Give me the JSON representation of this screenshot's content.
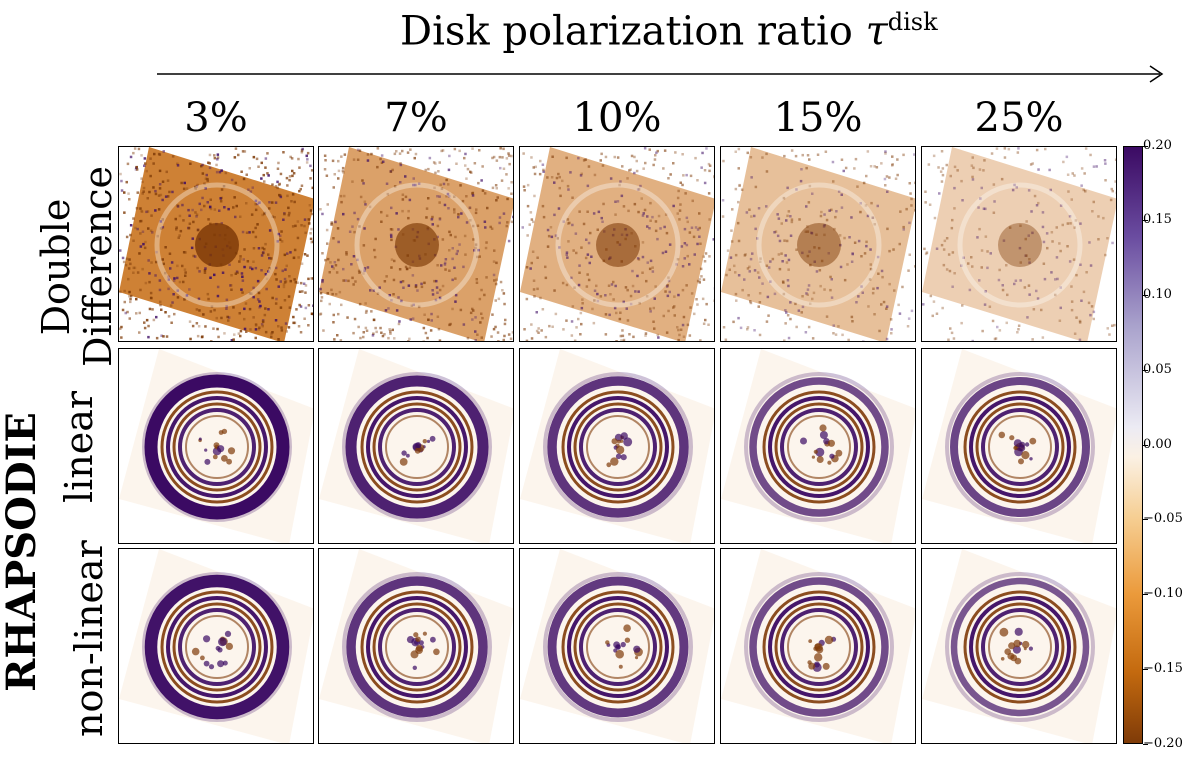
{
  "title": {
    "text": "Disk polarization ratio ",
    "symbol": "τ",
    "superscript": "disk"
  },
  "columns": [
    "3%",
    "7%",
    "10%",
    "15%",
    "25%"
  ],
  "rows": [
    {
      "label_line1": "Double",
      "label_line2": "Difference",
      "kind": "double-difference"
    },
    {
      "label_line1": "linear",
      "label_line2": "",
      "kind": "linear"
    },
    {
      "label_line1": "non-linear",
      "label_line2": "",
      "kind": "non-linear"
    }
  ],
  "group_label": "RHAPSODIE",
  "colorbar": {
    "min": -0.2,
    "max": 0.2,
    "ticks": [
      "0.20",
      "0.15",
      "0.10",
      "0.05",
      "0.00",
      "−0.05",
      "−0.10",
      "−0.15",
      "−0.20"
    ],
    "colors": {
      "positive": "#3b0a63",
      "mid": "#f7f6f6",
      "negative": "#7f3b08"
    }
  },
  "intensity": {
    "double-difference": [
      1.0,
      0.7,
      0.55,
      0.4,
      0.25
    ],
    "linear": [
      1.0,
      0.8,
      0.65,
      0.45,
      0.5
    ],
    "non-linear": [
      0.95,
      0.65,
      0.6,
      0.45,
      0.35
    ]
  }
}
